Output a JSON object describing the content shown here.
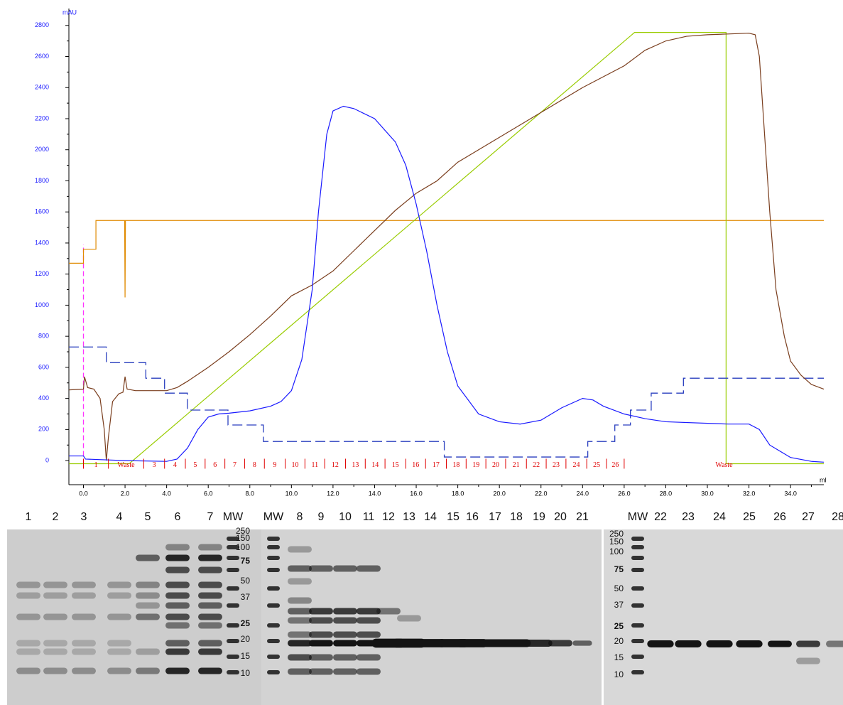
{
  "chart_data": {
    "type": "line",
    "y_label": "mAU",
    "x_label": "ml",
    "xlim": [
      -0.7,
      35.6
    ],
    "ylim": [
      -155,
      2895
    ],
    "xticks": [
      {
        "value": 0,
        "label": "0.0"
      },
      {
        "value": 2,
        "label": "2.0"
      },
      {
        "value": 4,
        "label": "4.0"
      },
      {
        "value": 6,
        "label": "6.0"
      },
      {
        "value": 8,
        "label": "8.0"
      },
      {
        "value": 10,
        "label": "10.0"
      },
      {
        "value": 12,
        "label": "12.0"
      },
      {
        "value": 14,
        "label": "14.0"
      },
      {
        "value": 16,
        "label": "16.0"
      },
      {
        "value": 18,
        "label": "18.0"
      },
      {
        "value": 20,
        "label": "20.0"
      },
      {
        "value": 22,
        "label": "22.0"
      },
      {
        "value": 24,
        "label": "24.0"
      },
      {
        "value": 26,
        "label": "26.0"
      },
      {
        "value": 28,
        "label": "28.0"
      },
      {
        "value": 30,
        "label": "30.0"
      },
      {
        "value": 32,
        "label": "32.0"
      },
      {
        "value": 34,
        "label": "34.0"
      }
    ],
    "yticks": [
      0,
      200,
      400,
      600,
      800,
      1000,
      1200,
      1400,
      1600,
      1800,
      2000,
      2200,
      2400,
      2600,
      2800
    ],
    "series": [
      {
        "color": "#e08a00",
        "style": "solid",
        "x": [
          -0.7,
          0,
          0,
          0.6,
          0.6,
          1.98,
          2.0,
          2.02,
          35.6
        ],
        "values": [
          1270,
          1270,
          1360,
          1360,
          1545,
          1545,
          1050,
          1545,
          1545
        ]
      },
      {
        "color": "#99cc00",
        "style": "solid",
        "x": [
          -0.7,
          2.2,
          26.5,
          30.9,
          30.9,
          35.6
        ],
        "values": [
          -20,
          -20,
          2755,
          2755,
          -20,
          -20
        ]
      },
      {
        "color": "#2a3fbf",
        "style": "dashed",
        "x": [
          -0.7,
          1.1,
          1.1,
          3.0,
          3.0,
          3.9,
          3.9,
          5.0,
          5.0,
          6.95,
          6.95,
          8.65,
          8.65,
          17.35,
          17.35,
          24.25,
          24.25,
          25.55,
          25.55,
          26.3,
          26.3,
          27.3,
          27.3,
          28.85,
          28.85,
          35.6
        ],
        "values": [
          731,
          731,
          630,
          630,
          530,
          530,
          434,
          434,
          325,
          325,
          229,
          229,
          123,
          123,
          23,
          23,
          123,
          123,
          229,
          229,
          325,
          325,
          434,
          434,
          530,
          530
        ]
      },
      {
        "color": "#7a3e1e",
        "style": "solid",
        "x": [
          -0.7,
          0,
          0.05,
          0.2,
          0.5,
          0.8,
          1.0,
          1.1,
          1.2,
          1.4,
          1.7,
          1.9,
          2.0,
          2.1,
          2.5,
          4.0,
          4.5,
          5,
          6,
          7,
          8,
          9,
          10,
          11,
          12,
          13,
          14,
          15,
          16,
          17,
          18,
          20,
          22,
          24,
          26,
          27,
          28,
          29,
          30,
          31,
          32,
          32.3,
          32.5,
          32.7,
          33,
          33.3,
          33.7,
          34,
          34.5,
          35,
          35.6
        ],
        "values": [
          455,
          460,
          540,
          470,
          460,
          400,
          200,
          0,
          150,
          380,
          430,
          440,
          540,
          460,
          450,
          450,
          470,
          510,
          600,
          700,
          810,
          930,
          1060,
          1130,
          1220,
          1350,
          1480,
          1610,
          1720,
          1800,
          1920,
          2080,
          2240,
          2400,
          2540,
          2640,
          2700,
          2730,
          2740,
          2745,
          2750,
          2740,
          2600,
          2200,
          1600,
          1100,
          800,
          640,
          550,
          490,
          460
        ]
      },
      {
        "color": "#1a1aff",
        "style": "solid",
        "x": [
          -0.7,
          0,
          0.1,
          2,
          4,
          4.5,
          5,
          5.5,
          6,
          6.5,
          7,
          8,
          9,
          9.5,
          10,
          10.5,
          11,
          11.3,
          11.7,
          12,
          12.5,
          13,
          14,
          15,
          15.5,
          16,
          16.5,
          17,
          17.5,
          18,
          19,
          20,
          21,
          22,
          23,
          24,
          24.5,
          25,
          26,
          27,
          28,
          30,
          31,
          32,
          32.5,
          33,
          34,
          35,
          35.6
        ],
        "values": [
          30,
          30,
          10,
          0,
          -5,
          10,
          80,
          200,
          280,
          300,
          305,
          320,
          350,
          380,
          450,
          650,
          1100,
          1600,
          2100,
          2250,
          2280,
          2265,
          2200,
          2050,
          1900,
          1650,
          1350,
          1000,
          700,
          480,
          300,
          250,
          235,
          260,
          340,
          400,
          390,
          350,
          300,
          270,
          250,
          240,
          235,
          235,
          200,
          100,
          20,
          -5,
          -10
        ]
      }
    ],
    "injection": {
      "x": 0,
      "values": [
        -20,
        1390
      ],
      "color": "#ff33ff"
    },
    "fractions": {
      "color": "#e00000",
      "level": -20,
      "labels": [
        "1",
        "Waste",
        "3",
        "4",
        "5",
        "6",
        "7",
        "8",
        "9",
        "10",
        "11",
        "12",
        "13",
        "14",
        "15",
        "16",
        "17",
        "18",
        "19",
        "20",
        "21",
        "22",
        "23",
        "24",
        "25",
        "26",
        "Waste"
      ],
      "x": [
        0.0,
        1.2,
        2.9,
        3.9,
        4.9,
        5.85,
        6.8,
        7.75,
        8.7,
        9.7,
        10.65,
        11.6,
        12.6,
        13.55,
        14.5,
        15.5,
        16.45,
        17.45,
        18.4,
        19.35,
        20.3,
        21.3,
        22.25,
        23.2,
        24.2,
        25.15,
        26.0
      ]
    }
  },
  "gels": [
    {
      "lanes": [
        "1",
        "2",
        "3",
        "4",
        "5",
        "6",
        "7",
        "MW"
      ],
      "mw_labels": [
        "250",
        "150",
        "100",
        "75",
        "50",
        "37",
        "25",
        "20",
        "15",
        "10"
      ]
    },
    {
      "lanes": [
        "MW",
        "8",
        "9",
        "10",
        "11",
        "12",
        "13",
        "14",
        "15",
        "16",
        "17",
        "18",
        "19",
        "20",
        "21"
      ]
    },
    {
      "lanes": [
        "MW",
        "22",
        "23",
        "24",
        "25",
        "26",
        "27",
        "28"
      ],
      "mw_labels": [
        "250",
        "150",
        "100",
        "75",
        "50",
        "37",
        "25",
        "20",
        "15",
        "10"
      ]
    }
  ]
}
